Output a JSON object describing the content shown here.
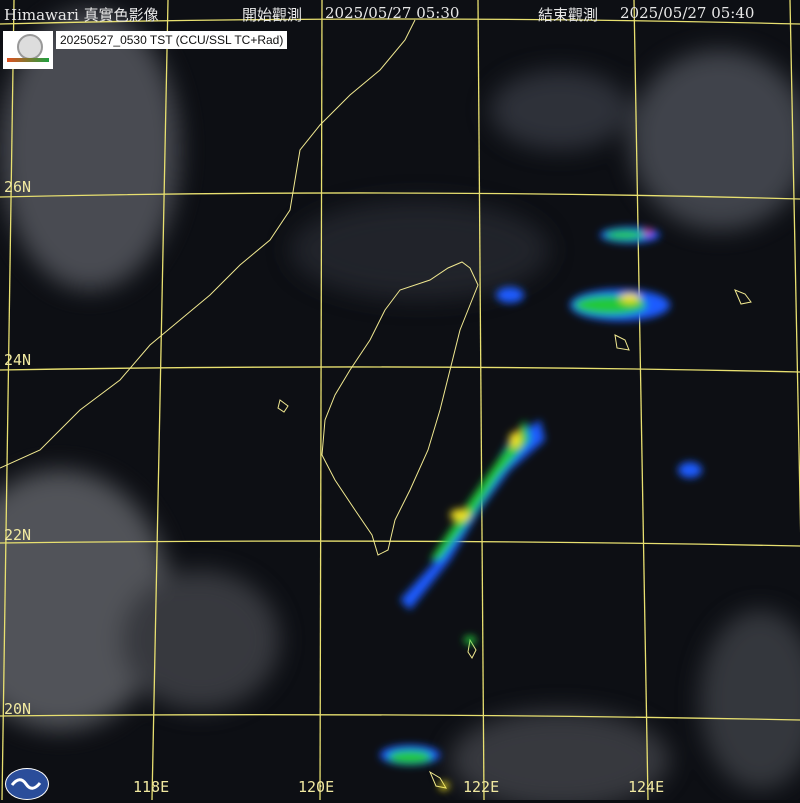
{
  "header": {
    "product": "Himawari 真實色影像",
    "start_label": "開始觀測",
    "start_time": "2025/05/27 05:30",
    "end_label": "結束觀測",
    "end_time": "2025/05/27 05:40"
  },
  "overlay_label": "20250527_0530 TST (CCU/SSL TC+Rad)",
  "latitude_labels": [
    "26N",
    "24N",
    "22N",
    "20N"
  ],
  "longitude_labels": [
    "118E",
    "120E",
    "122E",
    "124E"
  ],
  "colors": {
    "grid": "#e8e070",
    "coast": "#f0e890",
    "radar_low": "#1a5cff",
    "radar_mid": "#22c83a",
    "radar_high": "#f0e020",
    "radar_peak": "#ff3020"
  },
  "icons": {
    "top_logo": "university-seal-logo",
    "bottom_logo": "cwa-logo"
  }
}
